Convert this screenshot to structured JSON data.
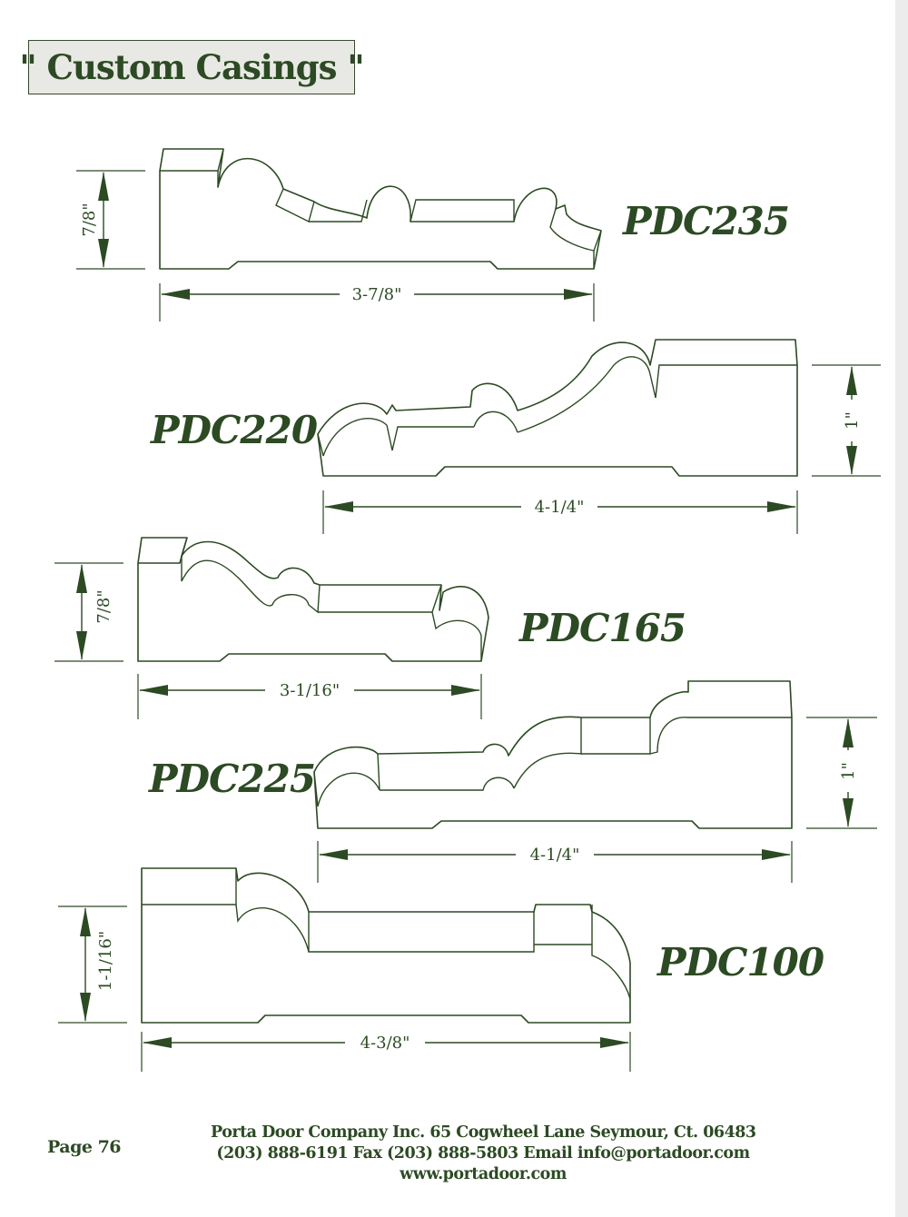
{
  "title": "\" Custom Casings \"",
  "profiles": [
    {
      "label": "PDC235",
      "height": "7/8\"",
      "width": "3-7/8\""
    },
    {
      "label": "PDC220",
      "height": "1\"",
      "width": "4-1/4\""
    },
    {
      "label": "PDC165",
      "height": "7/8\"",
      "width": "3-1/16\""
    },
    {
      "label": "PDC225",
      "height": "1\"",
      "width": "4-1/4\""
    },
    {
      "label": "PDC100",
      "height": "1-1/16\"",
      "width": "4-3/8\""
    }
  ],
  "footer": {
    "page": "Page 76",
    "line1": "Porta Door Company Inc. 65 Cogwheel Lane Seymour, Ct. 06483",
    "line2": "(203) 888-6191 Fax (203) 888-5803 Email info@portadoor.com",
    "line3": "www.portadoor.com"
  },
  "colors": {
    "ink": "#2c4a23",
    "title_bg": "#e8e8e4",
    "edge": "#ececec"
  }
}
